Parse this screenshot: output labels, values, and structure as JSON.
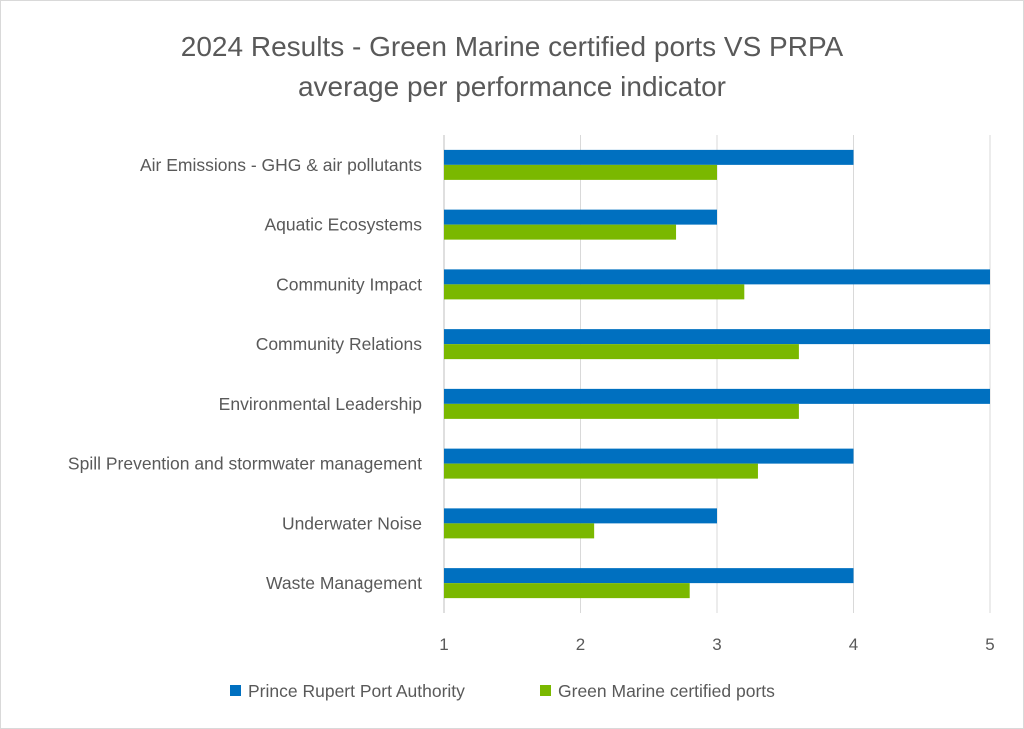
{
  "chart_data": {
    "type": "bar",
    "orientation": "horizontal",
    "title_lines": [
      "2024 Results - Green Marine certified ports VS PRPA",
      "average per performance indicator"
    ],
    "categories": [
      "Air Emissions  - GHG & air pollutants",
      "Aquatic Ecosystems",
      "Community Impact",
      "Community Relations",
      "Environmental Leadership",
      "Spill Prevention and stormwater management",
      "Underwater Noise",
      "Waste Management"
    ],
    "series": [
      {
        "name": "Prince Rupert Port Authority",
        "color": "#0070C0",
        "values": [
          4,
          3,
          5,
          5,
          5,
          4,
          3,
          4
        ]
      },
      {
        "name": "Green Marine certified ports",
        "color": "#7AB800",
        "values": [
          3.0,
          2.7,
          3.2,
          3.6,
          3.6,
          3.3,
          2.1,
          2.8
        ]
      }
    ],
    "xlim": [
      1,
      5
    ],
    "xticks": [
      "1",
      "2",
      "3",
      "4",
      "5"
    ],
    "grid": true,
    "legend": "bottom"
  }
}
